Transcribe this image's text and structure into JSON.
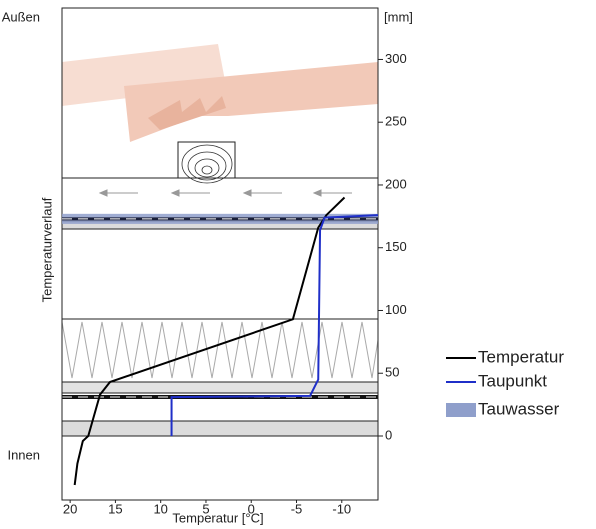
{
  "chart_data": {
    "type": "line",
    "outside_label": "Außen",
    "inside_label": "Innen",
    "y_unit_label": "[mm]",
    "y_label": "Temperaturverlauf",
    "x_label": "Temperatur [°C]",
    "xlim": [
      20.9,
      -14
    ],
    "xticks": [
      20,
      15,
      10,
      5,
      0,
      -5,
      -10
    ],
    "ylim": [
      -51,
      341
    ],
    "yticks": [
      0,
      50,
      100,
      150,
      200,
      250,
      300
    ],
    "series": [
      {
        "name": "Temperatur",
        "color": "#000000",
        "x": [
          19.5,
          19.2,
          18.6,
          18,
          16.7,
          15.6,
          -4.6,
          -7.4,
          -8.3,
          -10.3
        ],
        "values": [
          -39,
          -22,
          -4,
          0,
          33,
          43,
          93,
          166,
          176,
          190
        ]
      },
      {
        "name": "Taupunkt",
        "color": "#1f2fc8",
        "x": [
          8.8,
          8.8,
          -6.5,
          -7.4,
          -7.6,
          -8.1,
          -14
        ],
        "values": [
          0,
          31,
          32,
          45,
          164,
          174,
          176
        ]
      },
      {
        "name": "Tauwasser",
        "color": "#8f9fcb",
        "type": "band",
        "values": [
          169,
          177
        ]
      }
    ]
  }
}
